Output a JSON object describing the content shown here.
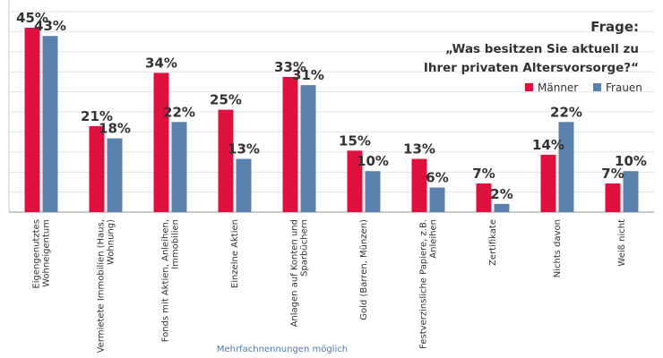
{
  "chart_data": {
    "type": "bar",
    "title_lines": [
      "Frage:",
      "„Was besitzen Sie aktuell zu",
      "Ihrer privaten Altersvorsorge?“"
    ],
    "category_label_lines": [
      [
        "Eigengenutztes",
        "Wohneigentum"
      ],
      [
        "Vermietete Immobilien (Haus,",
        "Wohnung)"
      ],
      [
        "Fonds mit Aktien, Anleihen,",
        "Immobilien"
      ],
      [
        "Einzelne Aktien"
      ],
      [
        "Anlagen auf Konten und",
        "Sparbüchern"
      ],
      [
        "Gold (Barren, Münzen)"
      ],
      [
        "Festverzinsliche Papiere, z.B.",
        "Anleihen"
      ],
      [
        "Zertifikate"
      ],
      [
        "Nichts davon"
      ],
      [
        "Weiß nicht"
      ]
    ],
    "series": [
      {
        "name": "Männer",
        "color": "#e0103e",
        "values": [
          45,
          21,
          34,
          25,
          33,
          15,
          13,
          7,
          14,
          7
        ],
        "labels": [
          "45%",
          "21%",
          "34%",
          "25%",
          "33%",
          "15%",
          "13%",
          "7%",
          "14%",
          "7%"
        ]
      },
      {
        "name": "Frauen",
        "color": "#5b82ac",
        "values": [
          43,
          18,
          22,
          13,
          31,
          10,
          6,
          2,
          22,
          10
        ],
        "labels": [
          "43%",
          "18%",
          "22%",
          "13%",
          "31%",
          "10%",
          "6%",
          "2%",
          "22%",
          "10%"
        ]
      }
    ],
    "ylim": [
      0,
      45
    ],
    "grid": true,
    "legend": "top-right"
  },
  "footnote": "Mehrfachnennungen möglich"
}
